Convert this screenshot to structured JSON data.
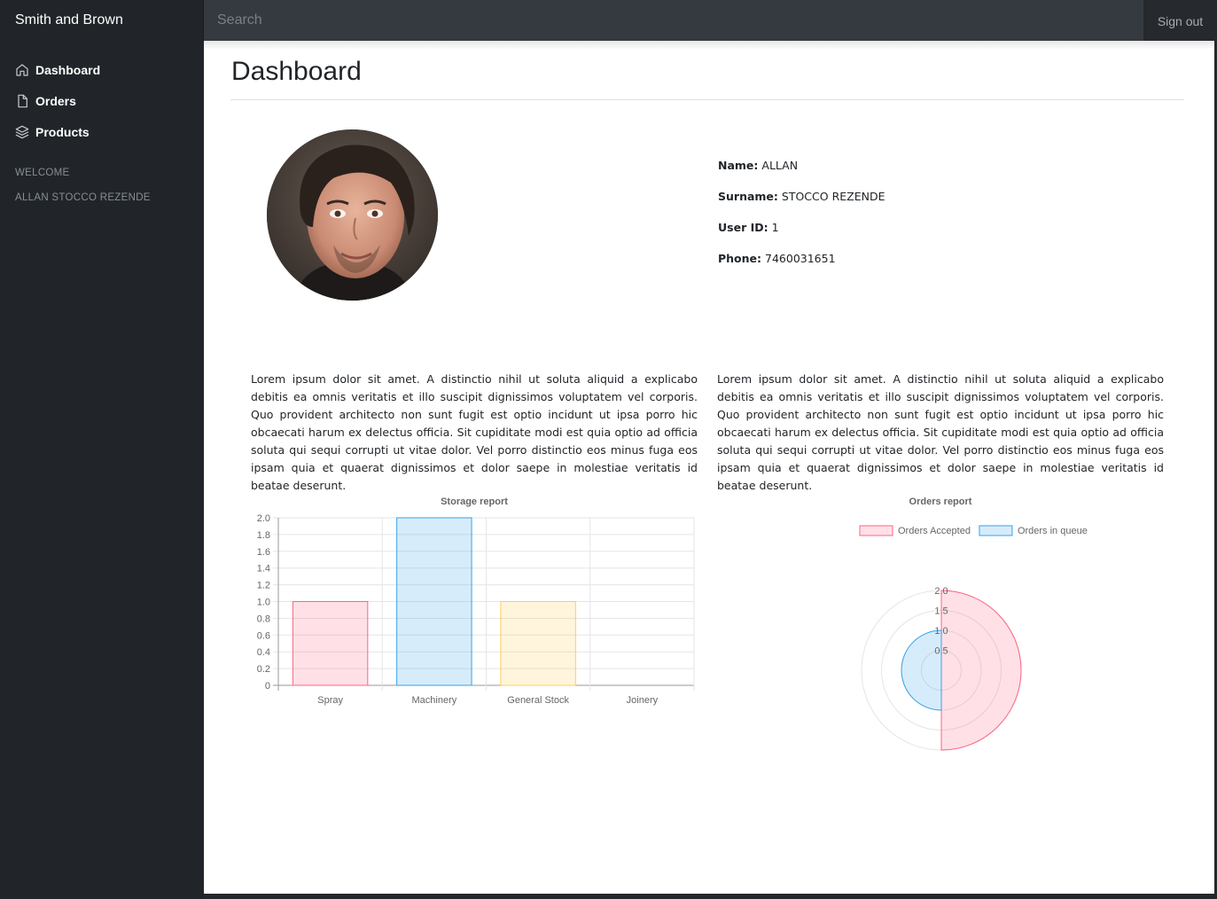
{
  "header": {
    "brand": "Smith and Brown",
    "search_placeholder": "Search",
    "signout_label": "Sign out"
  },
  "sidebar": {
    "items": [
      {
        "label": "Dashboard",
        "icon": "home-icon"
      },
      {
        "label": "Orders",
        "icon": "file-icon"
      },
      {
        "label": "Products",
        "icon": "layers-icon"
      }
    ],
    "welcome_heading": "WELCOME",
    "user_name": "ALLAN STOCCO REZENDE"
  },
  "main": {
    "title": "Dashboard",
    "profile": {
      "name_label": "Name:",
      "name": "ALLAN",
      "surname_label": "Surname:",
      "surname": "STOCCO REZENDE",
      "userid_label": "User ID:",
      "userid": "1",
      "phone_label": "Phone:",
      "phone": "7460031651"
    },
    "lorem_left": "Lorem ipsum dolor sit amet. A distinctio nihil ut soluta aliquid a explicabo debitis ea omnis veritatis et illo suscipit dignissimos voluptatem vel corporis. Quo provident architecto non sunt fugit est optio incidunt ut ipsa porro hic obcaecati harum ex delectus officia. Sit cupiditate modi est quia optio ad officia soluta qui sequi corrupti ut vitae dolor. Vel porro distinctio eos minus fuga eos ipsam quia et quaerat dignissimos et dolor saepe in molestiae veritatis id beatae deserunt.",
    "lorem_right": "Lorem ipsum dolor sit amet. A distinctio nihil ut soluta aliquid a explicabo debitis ea omnis veritatis et illo suscipit dignissimos voluptatem vel corporis. Quo provident architecto non sunt fugit est optio incidunt ut ipsa porro hic obcaecati harum ex delectus officia. Sit cupiditate modi est quia optio ad officia soluta qui sequi corrupti ut vitae dolor. Vel porro distinctio eos minus fuga eos ipsam quia et quaerat dignissimos et dolor saepe in molestiae veritatis id beatae deserunt."
  },
  "chart_data": [
    {
      "type": "bar",
      "title": "Storage report",
      "categories": [
        "Spray",
        "Machinery",
        "General Stock",
        "Joinery"
      ],
      "values": [
        1,
        2,
        1,
        0
      ],
      "colors": [
        "#ff6384",
        "#36a2eb",
        "#ffce56",
        "#4bc0c0"
      ],
      "ylim": [
        0,
        2
      ],
      "yticks": [
        "0",
        "0.2",
        "0.4",
        "0.6",
        "0.8",
        "1.0",
        "1.2",
        "1.4",
        "1.6",
        "1.8",
        "2.0"
      ],
      "grid": true,
      "legend": "none"
    },
    {
      "type": "polarArea",
      "title": "Orders report",
      "categories": [
        "Orders Accepted",
        "Orders in queue"
      ],
      "values": [
        2,
        1
      ],
      "colors": [
        "#ff6384",
        "#36a2eb"
      ],
      "rlim": [
        0,
        2
      ],
      "rticks": [
        "0.5",
        "1.0",
        "1.5",
        "2.0"
      ],
      "legend": "top"
    }
  ]
}
